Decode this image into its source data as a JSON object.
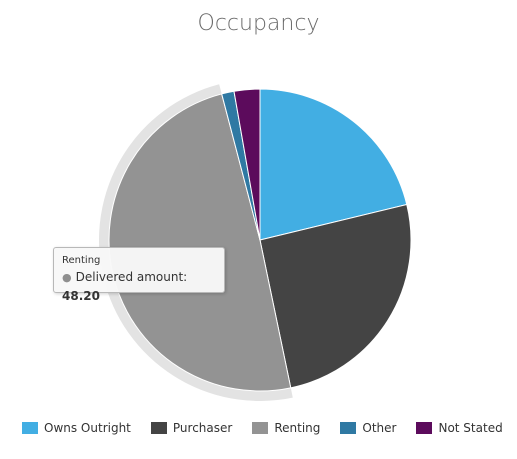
{
  "chart_data": {
    "type": "pie",
    "title": "Occupancy",
    "series_name": "Delivered amount",
    "categories": [
      "Owns Outright",
      "Purchaser",
      "Renting",
      "Other",
      "Not Stated"
    ],
    "values": [
      20.8,
      25.0,
      48.2,
      1.3,
      2.7
    ],
    "colors": [
      "#42aee3",
      "#444444",
      "#939393",
      "#2f79a3",
      "#5c0b5c"
    ],
    "highlighted": "Renting",
    "legend_position": "bottom"
  },
  "tooltip": {
    "category": "Renting",
    "label": "Delivered amount",
    "value": "48.20"
  }
}
